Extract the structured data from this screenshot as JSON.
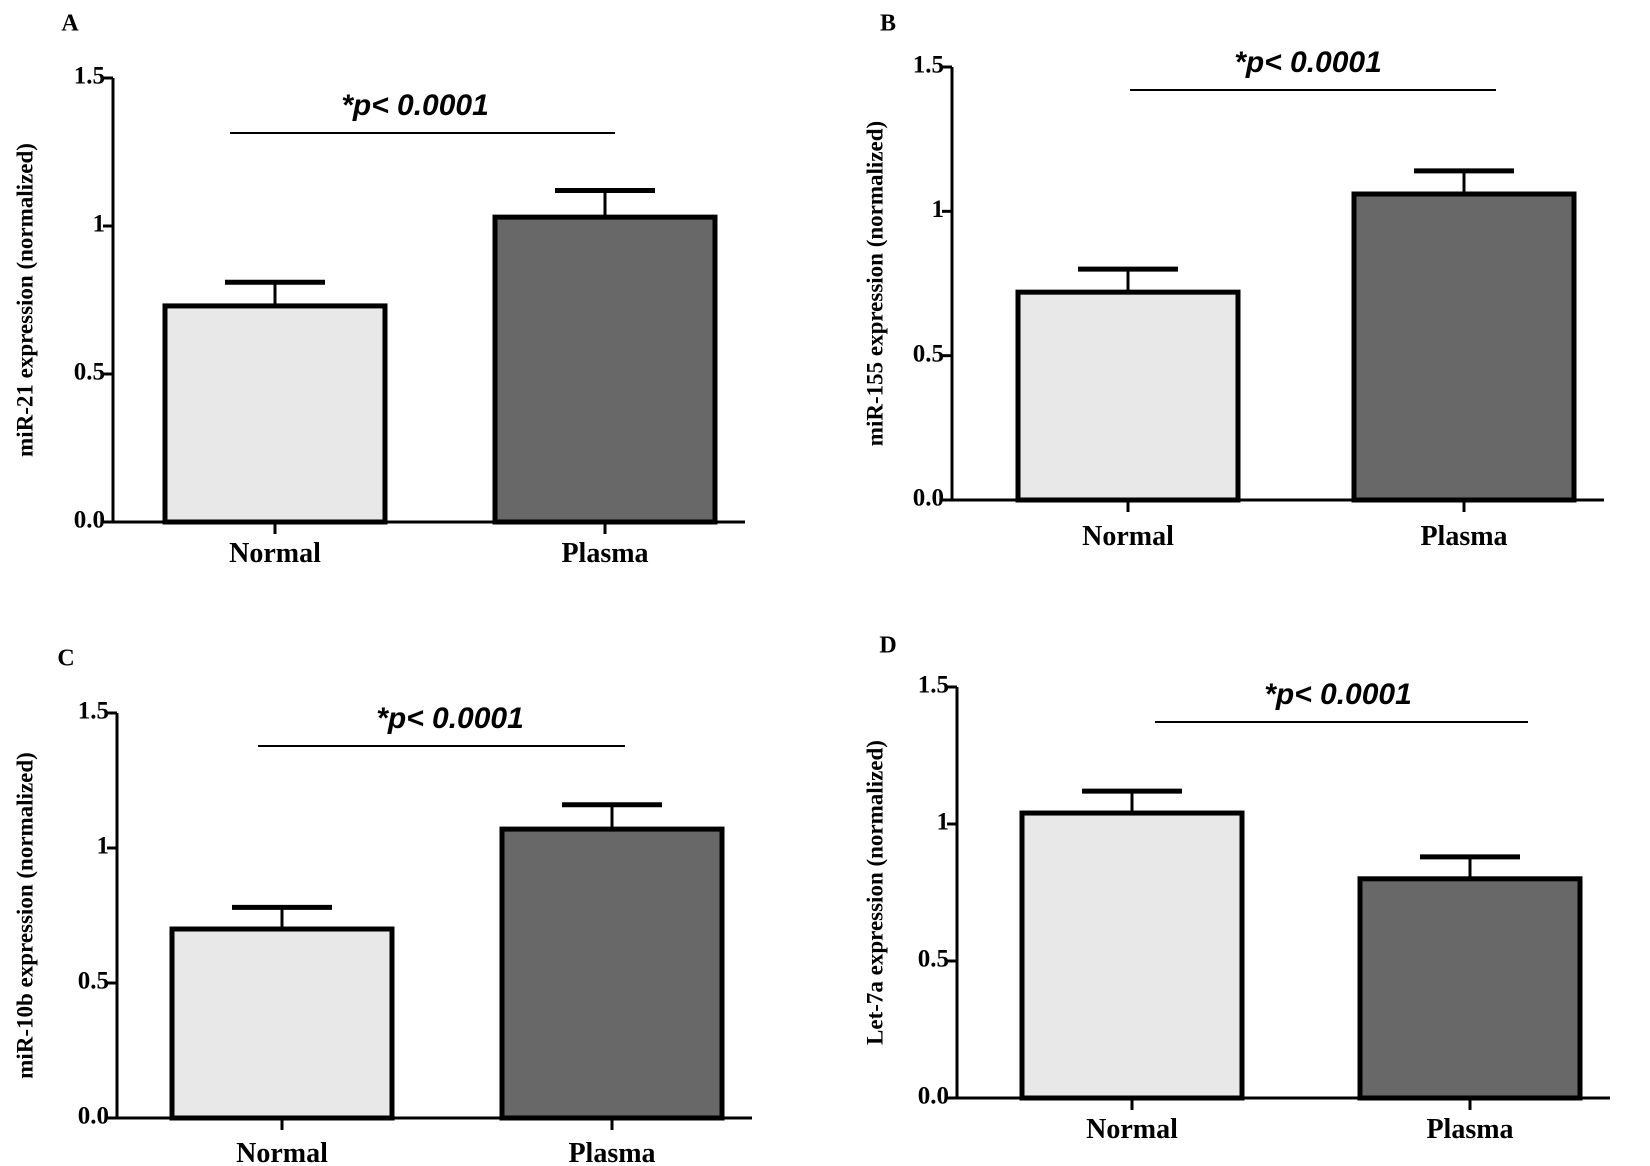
{
  "colors": {
    "normal_fill": "#e8e8e8",
    "plasma_fill": "#686868",
    "stroke": "#000000"
  },
  "chart_data": [
    {
      "panel": "A",
      "type": "bar",
      "categories": [
        "Normal",
        "Plasma"
      ],
      "values": [
        0.73,
        1.03
      ],
      "errors": [
        0.08,
        0.09
      ],
      "ylabel": "miR-21 expression (normalized)",
      "yticks": [
        "0.0",
        "0.5",
        "1",
        "1.5"
      ],
      "ylim": [
        0,
        1.5
      ],
      "annotation": "*p< 0.0001"
    },
    {
      "panel": "B",
      "type": "bar",
      "categories": [
        "Normal",
        "Plasma"
      ],
      "values": [
        0.72,
        1.06
      ],
      "errors": [
        0.08,
        0.08
      ],
      "ylabel": "miR-155 expression (normalized)",
      "yticks": [
        "0.0",
        "0.5",
        "1",
        "1.5"
      ],
      "ylim": [
        0,
        1.5
      ],
      "annotation": "*p< 0.0001"
    },
    {
      "panel": "C",
      "type": "bar",
      "categories": [
        "Normal",
        "Plasma"
      ],
      "values": [
        0.7,
        1.07
      ],
      "errors": [
        0.08,
        0.09
      ],
      "ylabel": "miR-10b expression (normalized)",
      "yticks": [
        "0.0",
        "0.5",
        "1",
        "1.5"
      ],
      "ylim": [
        0,
        1.5
      ],
      "annotation": "*p< 0.0001"
    },
    {
      "panel": "D",
      "type": "bar",
      "categories": [
        "Normal",
        "Plasma"
      ],
      "values": [
        1.04,
        0.8
      ],
      "errors": [
        0.08,
        0.08
      ],
      "ylabel": "Let-7a expression (normalized)",
      "yticks": [
        "0.0",
        "0.5",
        "1",
        "1.5"
      ],
      "ylim": [
        0,
        1.5
      ],
      "annotation": "*p< 0.0001"
    }
  ]
}
